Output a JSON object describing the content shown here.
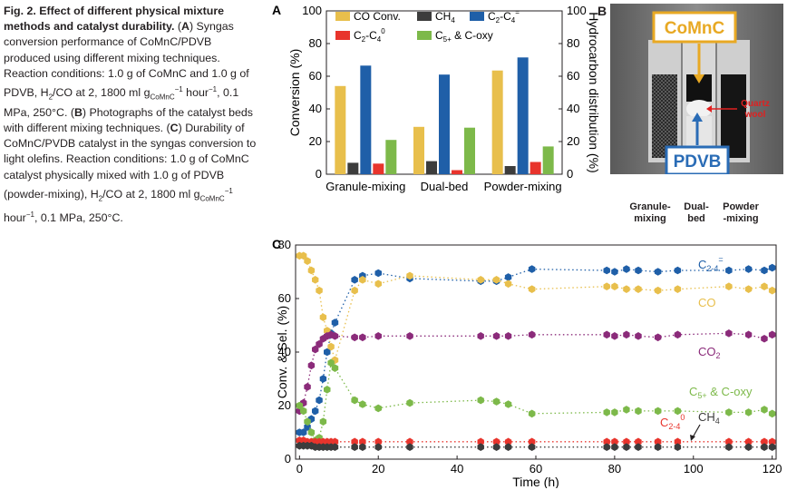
{
  "caption": {
    "title": "Fig. 2. Effect of different physical mixture methods and catalyst durability.",
    "p1": " (",
    "A": "A",
    "p2": ") Syngas conversion performance of CoMnC/PDVB produced using different mixing techniques. Reaction conditions: 1.0 g of CoMnC and 1.0 g of PDVB, H",
    "h2sub": "2",
    "p3": "/CO at 2, 1800 ml g",
    "gsub": "CoMnC",
    "sup1": "−1",
    "p4": " hour",
    "sup2": "−1",
    "p5": ", 0.1 MPa, 250°C. (",
    "B": "B",
    "p6": ") Photographs of the catalyst beds with different mixing techniques. (",
    "C": "C",
    "p7": ") Durability of CoMnC/PVDB catalyst in the syngas conversion to light olefins. Reaction conditions: 1.0 g of CoMnC catalyst physically mixed with 1.0 g of PDVB (powder-mixing), H",
    "h2sub2": "2",
    "p8": "/CO at 2, 1800 ml g",
    "gsub2": "CoMnC",
    "sup3": "−1",
    "p9": " hour",
    "sup4": "−1",
    "p10": ", 0.1 MPa, 250°C."
  },
  "panel_labels": {
    "a": "A",
    "b": "B",
    "c": "C"
  },
  "photo": {
    "top_label": "CoMnC",
    "bottom_label": "PDVB",
    "quartz_label_1": "Quartz",
    "quartz_label_2": "wool",
    "bed_labels": [
      "Granule-\nmixing",
      "Dual-\nbed",
      "Powder\n-mixing"
    ]
  },
  "colors": {
    "co": "#e8bf4c",
    "ch4": "#3c3c3c",
    "olefin": "#1f5fa8",
    "paraffin": "#e8342c",
    "c5": "#7db94a",
    "co2": "#8b2b7a",
    "photo_frame": "#e8a924",
    "pdvb_frame": "#2a6cb6",
    "quartz": "#e02020"
  },
  "chart_data": [
    {
      "type": "bar",
      "categories": [
        "Granule-mixing",
        "Dual-bed",
        "Powder-mixing"
      ],
      "ylabel": "Conversion (%)",
      "y2label": "Hydrocarbon distribution (%)",
      "ylim": [
        0,
        100
      ],
      "y2lim": [
        0,
        100
      ],
      "yticks": [
        0,
        20,
        40,
        60,
        80,
        100
      ],
      "legend": [
        {
          "name": "CO Conv.",
          "sub": "",
          "sup": ""
        },
        {
          "name": "CH",
          "sub": "4",
          "sup": ""
        },
        {
          "name": "C",
          "sub": "2",
          "mid": "-C",
          "sub2": "4",
          "sup": "="
        },
        {
          "name": "C",
          "sub": "2",
          "mid": "-C",
          "sub2": "4",
          "sup": "0"
        },
        {
          "name": "C",
          "sub": "5+",
          "mid": " & C-oxy",
          "sub2": "",
          "sup": ""
        }
      ],
      "series": [
        {
          "name": "CO Conv.",
          "values": [
            54,
            29,
            63.5
          ]
        },
        {
          "name": "CH4",
          "values": [
            7,
            8,
            5
          ]
        },
        {
          "name": "C2-C4=",
          "values": [
            66.5,
            61,
            71.5
          ]
        },
        {
          "name": "C2-C4 0",
          "values": [
            6.5,
            2.5,
            7.5
          ]
        },
        {
          "name": "C5+ & C-oxy",
          "values": [
            21,
            28.5,
            17
          ]
        }
      ]
    },
    {
      "type": "scatter",
      "title": "",
      "xlabel": "Time (h)",
      "ylabel": "Conv. & Sel. (%)",
      "xlim": [
        -1,
        121
      ],
      "ylim": [
        0,
        80
      ],
      "xticks": [
        0,
        20,
        40,
        60,
        80,
        100,
        120
      ],
      "yticks": [
        0,
        20,
        40,
        60,
        80
      ],
      "annotations": [
        {
          "text": "C",
          "sub": "2-4",
          "sup": "=",
          "series": "C2-4="
        },
        {
          "text": "CO",
          "sub": "",
          "sup": "",
          "series": "CO"
        },
        {
          "text": "CO",
          "sub": "2",
          "sup": "",
          "series": "CO2"
        },
        {
          "text": "C",
          "sub": "5+",
          "sup": "",
          "tail": " & C-oxy",
          "series": "C5+ & C-oxy"
        },
        {
          "text": "C",
          "sub": "2-4",
          "sup": "0",
          "series": "C2-4 0"
        },
        {
          "text": "CH",
          "sub": "4",
          "sup": "",
          "series": "CH4"
        }
      ],
      "x": [
        0,
        1,
        2,
        3,
        4,
        5,
        6,
        7,
        8,
        9,
        14,
        16,
        20,
        28,
        46,
        50,
        53,
        59,
        78,
        80,
        83,
        86,
        91,
        96,
        109,
        114,
        118,
        120
      ],
      "series": [
        {
          "name": "C2-4=",
          "values": [
            10,
            10,
            12,
            15,
            18,
            22,
            30,
            40,
            47,
            51,
            67,
            68.5,
            69.5,
            67.5,
            66.5,
            66.5,
            68,
            71,
            70.5,
            70,
            71,
            70.5,
            70,
            70.5,
            70.5,
            71,
            70.5,
            71.5
          ]
        },
        {
          "name": "CO",
          "values": [
            76,
            76,
            74,
            70.5,
            67,
            63,
            53,
            48,
            42,
            37,
            63,
            67,
            65.5,
            68.5,
            67,
            67,
            65.5,
            63.5,
            64.5,
            64.5,
            63.5,
            63.5,
            63,
            63.5,
            64.5,
            63.5,
            64.5,
            63
          ]
        },
        {
          "name": "CO2",
          "values": [
            18,
            21,
            27,
            35,
            41,
            43,
            45,
            46,
            46.5,
            46,
            45.5,
            45.5,
            46,
            46,
            46,
            46,
            46,
            46.5,
            46.5,
            46,
            46.5,
            46,
            45.5,
            46.5,
            47,
            46.5,
            45,
            46.5
          ]
        },
        {
          "name": "C5+ & C-oxy",
          "values": [
            20,
            18,
            14,
            10,
            7,
            8,
            14,
            26,
            36,
            34,
            22,
            20.5,
            19,
            21,
            22,
            21.5,
            20.5,
            17,
            17.5,
            17.5,
            18.5,
            18,
            18,
            18,
            17.5,
            17.5,
            18.5,
            17
          ]
        },
        {
          "name": "C2-4 0",
          "values": [
            7,
            7,
            6.5,
            6.5,
            6.5,
            6.5,
            6.5,
            6.5,
            6.5,
            6.5,
            6.5,
            6.5,
            6.5,
            6.5,
            6.5,
            6.5,
            6.5,
            6.5,
            6.5,
            6.5,
            6.5,
            6.5,
            6.5,
            6.5,
            6.5,
            6.5,
            6.5,
            6.5
          ]
        },
        {
          "name": "CH4",
          "values": [
            5,
            5,
            5,
            5,
            4.5,
            4.5,
            4.5,
            4.5,
            4.5,
            4.5,
            4.5,
            4.5,
            4.5,
            4.5,
            4.5,
            4.5,
            4.5,
            4.5,
            4.5,
            4.5,
            4.5,
            4.5,
            4.5,
            4.5,
            4.5,
            4.5,
            4.5,
            4.5
          ]
        }
      ]
    }
  ]
}
